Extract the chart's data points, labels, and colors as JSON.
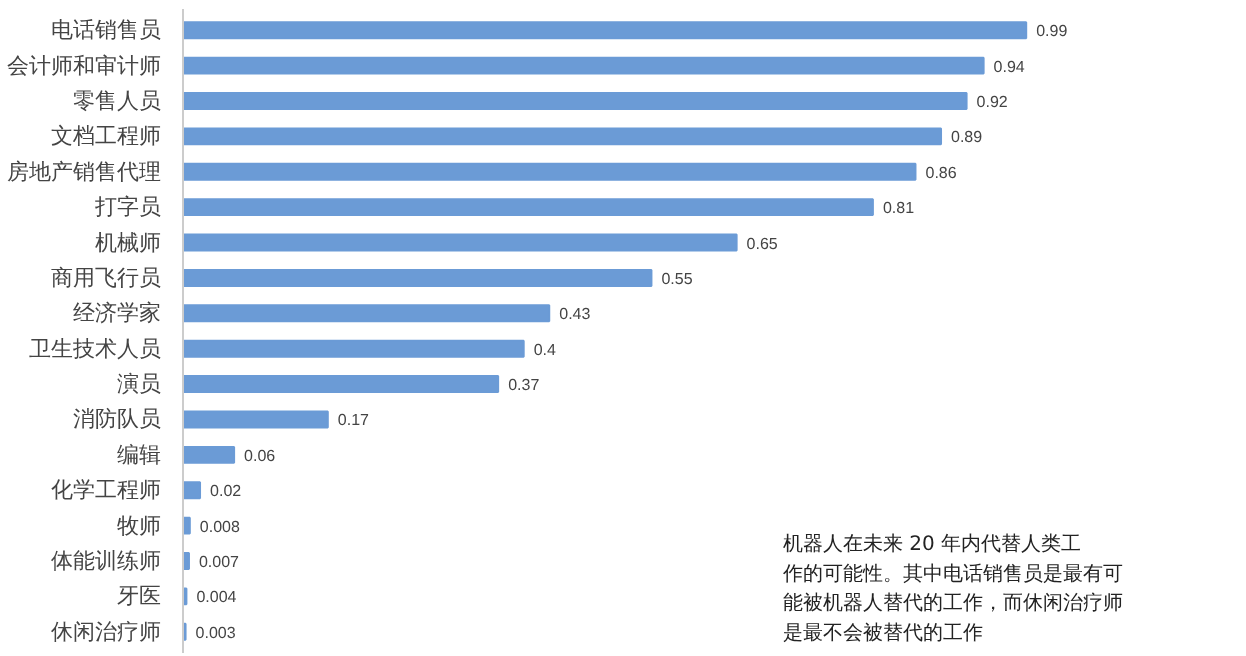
{
  "chart_data": {
    "type": "bar",
    "orientation": "horizontal",
    "data_labels": true,
    "color": "#6b9bd6",
    "categories": [
      "电话销售员",
      "会计师和审计师",
      "零售人员",
      "文档工程师",
      "房地产销售代理",
      "打字员",
      "机械师",
      "商用飞行员",
      "经济学家",
      "卫生技术人员",
      "演员",
      "消防队员",
      "编辑",
      "化学工程师",
      "牧师",
      "体能训练师",
      "牙医",
      "休闲治疗师"
    ],
    "values": [
      0.99,
      0.94,
      0.92,
      0.89,
      0.86,
      0.81,
      0.65,
      0.55,
      0.43,
      0.4,
      0.37,
      0.17,
      0.06,
      0.02,
      0.008,
      0.007,
      0.004,
      0.003
    ],
    "annotations": [
      "机器人在未来 20 年内代替人类工作的可能性。其中电话销售员是最有可能被机器人替代的工作，而休闲治疗师是最不会被替代的工作"
    ]
  }
}
